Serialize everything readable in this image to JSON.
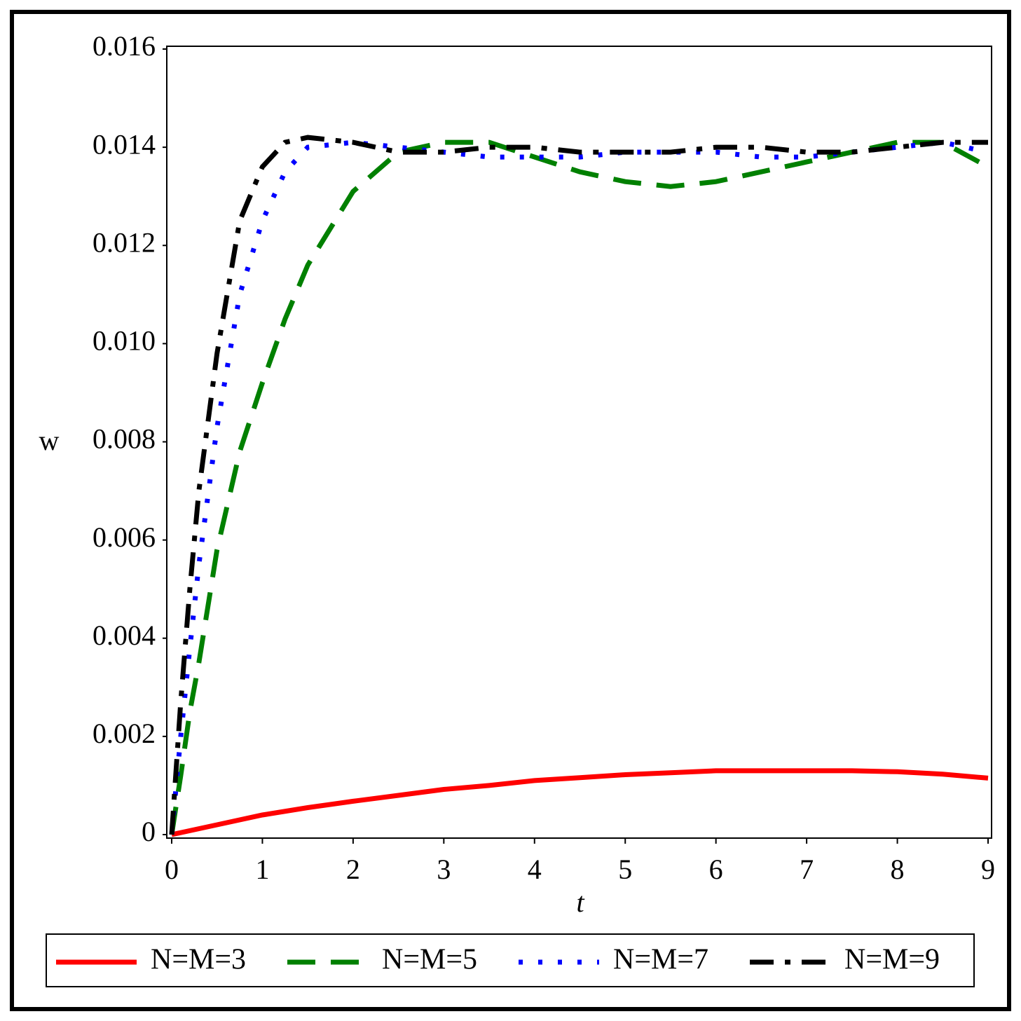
{
  "chart_data": {
    "type": "line",
    "x_label": "t",
    "y_label": "w",
    "xlim": [
      0,
      9
    ],
    "ylim": [
      0,
      0.016
    ],
    "xticks": [
      0,
      1,
      2,
      3,
      4,
      5,
      6,
      7,
      8,
      9
    ],
    "yticks": [
      0,
      0.002,
      0.004,
      0.006,
      0.008,
      {
        "value": 0.01,
        "label": "0.010"
      },
      0.012,
      0.014,
      0.016
    ],
    "legend": "bottom",
    "series": [
      {
        "name": "N=M=3",
        "color": "#ff0000",
        "dash": "solid",
        "x": [
          0,
          0.5,
          1,
          1.5,
          2,
          2.5,
          3,
          3.5,
          4,
          4.5,
          5,
          5.5,
          6,
          6.5,
          7,
          7.5,
          8,
          8.5,
          9
        ],
        "values": [
          0,
          0.0002,
          0.0004,
          0.00055,
          0.00068,
          0.0008,
          0.00092,
          0.001,
          0.0011,
          0.00116,
          0.00122,
          0.00126,
          0.0013,
          0.0013,
          0.0013,
          0.0013,
          0.00128,
          0.00123,
          0.00115
        ]
      },
      {
        "name": "N=M=5",
        "color": "#008000",
        "dash": "dash",
        "x": [
          0,
          0.1,
          0.2,
          0.3,
          0.5,
          0.75,
          1,
          1.25,
          1.5,
          2,
          2.5,
          3,
          3.5,
          4,
          4.5,
          5,
          5.5,
          6,
          6.5,
          7,
          7.5,
          8,
          8.5,
          9
        ],
        "values": [
          0,
          0.0012,
          0.0025,
          0.0035,
          0.0058,
          0.0078,
          0.0092,
          0.0105,
          0.0116,
          0.0131,
          0.0139,
          0.0141,
          0.0141,
          0.0138,
          0.0135,
          0.0133,
          0.0132,
          0.0133,
          0.0135,
          0.0137,
          0.0139,
          0.0141,
          0.0141,
          0.0136
        ]
      },
      {
        "name": "N=M=7",
        "color": "#0000ff",
        "dash": "dot",
        "x": [
          0,
          0.1,
          0.2,
          0.3,
          0.5,
          0.75,
          1,
          1.25,
          1.5,
          2,
          2.5,
          3,
          3.5,
          4,
          4.5,
          5,
          5.5,
          6,
          6.5,
          7,
          7.5,
          8,
          8.5,
          9
        ],
        "values": [
          0,
          0.002,
          0.0038,
          0.0055,
          0.0083,
          0.011,
          0.0125,
          0.0135,
          0.014,
          0.0141,
          0.014,
          0.0139,
          0.0138,
          0.0138,
          0.0138,
          0.0139,
          0.0139,
          0.0139,
          0.0138,
          0.0138,
          0.0139,
          0.014,
          0.0141,
          0.0139
        ]
      },
      {
        "name": "N=M=9",
        "color": "#000000",
        "dash": "dashdot",
        "x": [
          0,
          0.1,
          0.2,
          0.3,
          0.5,
          0.75,
          1,
          1.25,
          1.5,
          2,
          2.5,
          3,
          3.5,
          4,
          4.5,
          5,
          5.5,
          6,
          6.5,
          7,
          7.5,
          8,
          8.5,
          9
        ],
        "values": [
          0,
          0.0027,
          0.005,
          0.007,
          0.0098,
          0.0125,
          0.0136,
          0.0141,
          0.0142,
          0.0141,
          0.0139,
          0.0139,
          0.014,
          0.014,
          0.0139,
          0.0139,
          0.0139,
          0.014,
          0.014,
          0.0139,
          0.0139,
          0.014,
          0.0141,
          0.0141
        ]
      }
    ]
  }
}
